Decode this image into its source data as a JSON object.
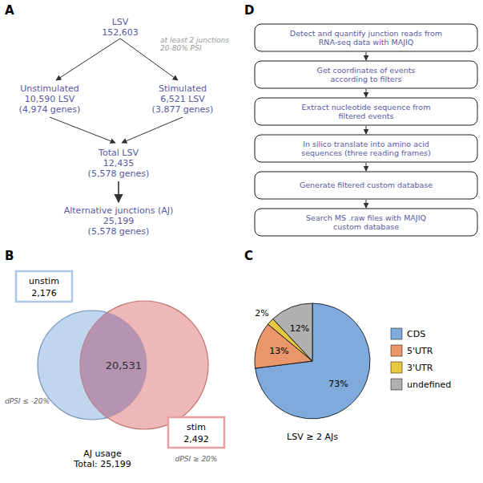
{
  "chart_data": [
    {
      "type": "flowchart",
      "title": "A",
      "color": "#5858a0",
      "annotations": [
        "LSV\n152,603",
        "at least 2 junctions\n20-80% PSI",
        "Unstimulated\n10,590 LSV\n(4,974 genes)",
        "Stimulated\n6,521 LSV\n(3,877 genes)",
        "Total LSV\n12,435\n(5,578 genes)",
        "Alternative junctions (AJ)\n25,199\n(5,578 genes)"
      ]
    },
    {
      "type": "venn",
      "title": "B",
      "categories": [
        "unstim",
        null,
        "stim"
      ],
      "values": [
        2176,
        20531,
        2492
      ],
      "value_labels": [
        "2,176",
        "20,531",
        "2,492"
      ],
      "colors": [
        "#aac8e8",
        "#b090b0",
        "#e8a0a0"
      ],
      "data_labels": true,
      "annotations": [
        "dPSI ≤ -20%",
        "dPSI ≥ 20%",
        "AJ usage\nTotal: 25,199"
      ]
    },
    {
      "type": "pie",
      "title": "C",
      "categories": [
        "CDS",
        "5'UTR",
        "3'UTR",
        "undefined"
      ],
      "values": [
        73,
        13,
        2,
        12
      ],
      "value_labels": [
        "73%",
        "13%",
        "2%",
        "12%"
      ],
      "colors": [
        "#7faadb",
        "#e8966a",
        "#e8c840",
        "#b0b0b0"
      ],
      "data_labels": true,
      "legend": "right",
      "xlabel": "LSV ≥ 2 AJs"
    },
    {
      "type": "flowchart",
      "title": "D",
      "color": "#5858a0",
      "annotations": [
        "Detect and quantify junction reads from\nRNA-seq data with MAJIQ",
        "Get coordinates of events\naccording to filters",
        "Extract nucleotide sequence from\nfiltered events",
        "In silico translate into amino acid\nsequences (three reading frames)",
        "Generate filtered custom database",
        "Search MS .raw files with MAJIQ\ncustom database"
      ]
    }
  ]
}
